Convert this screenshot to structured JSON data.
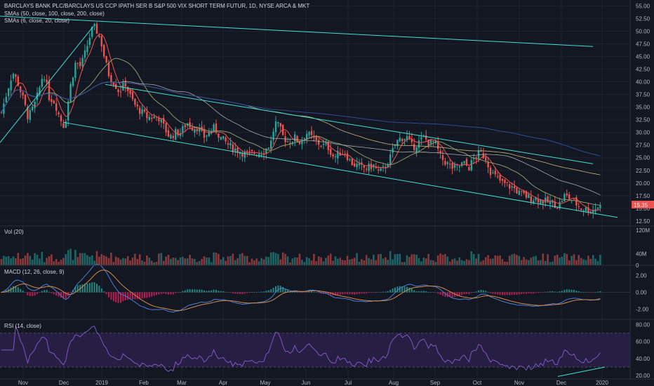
{
  "colors": {
    "background": "#131722",
    "grid": "#1e2230",
    "up": "#26a69a",
    "down": "#ef5350",
    "sma50": "#a9a9a9",
    "sma100": "#c9b47a",
    "sma200": "#2f4b9a",
    "sma6": "#ef5350",
    "sma20": "#8a9a6a",
    "trend": "#40e0d0",
    "macd": "#4a7fd4",
    "signal": "#d48a4a",
    "rsi": "#7e57c2",
    "rsi_band": "#2a1f47",
    "price_badge": "#ef5350"
  },
  "header": {
    "title": "BARCLAYS BANK PLC/BARCLAYS US CCP IPATH SER B S&P 500 VIX SHORT TERM FUTUR, 1D, NYSE ARCA & MKT",
    "sma_long": "SMAs (50, close, 100, close, 200, close)",
    "sma_short": "SMAs (6, close, 20, close)"
  },
  "panes": {
    "vol_label": "Vol (20)",
    "macd_label": "MACD (12, 26, close, 9)",
    "rsi_label": "RSI (14, close)"
  },
  "price_badge": "15.35",
  "chart_data": [
    {
      "type": "candlestick",
      "title": "BARCLAYS BANK PLC/BARCLAYS US CCP IPATH SER B S&P 500 VIX SHORT TERM FUTUR, 1D, NYSE ARCA & MKT",
      "x_ticks": [
        "Nov",
        "Dec",
        "2019",
        "Feb",
        "Mar",
        "Apr",
        "May",
        "Jun",
        "Jul",
        "Aug",
        "Sep",
        "Oct",
        "Nov",
        "Dec",
        "2020"
      ],
      "y_ticks": [
        "55.00",
        "52.50",
        "50.00",
        "47.50",
        "45.00",
        "42.50",
        "40.00",
        "37.50",
        "35.00",
        "32.50",
        "30.00",
        "27.50",
        "25.00",
        "22.50",
        "20.00",
        "17.50",
        "15.00",
        "12.50"
      ],
      "ylim": [
        11.5,
        55.5
      ],
      "last_price": 15.35,
      "close_path": [
        [
          0,
          33
        ],
        [
          10,
          38
        ],
        [
          18,
          42
        ],
        [
          25,
          40
        ],
        [
          32,
          37
        ],
        [
          40,
          33
        ],
        [
          48,
          35
        ],
        [
          55,
          38
        ],
        [
          62,
          42
        ],
        [
          70,
          37
        ],
        [
          78,
          36
        ],
        [
          85,
          33
        ],
        [
          92,
          31
        ],
        [
          100,
          39
        ],
        [
          108,
          44
        ],
        [
          115,
          43
        ],
        [
          122,
          46
        ],
        [
          128,
          49
        ],
        [
          133,
          51
        ],
        [
          138,
          50
        ],
        [
          144,
          48
        ],
        [
          150,
          44
        ],
        [
          156,
          41
        ],
        [
          162,
          40
        ],
        [
          170,
          38
        ],
        [
          178,
          40
        ],
        [
          186,
          37
        ],
        [
          194,
          35
        ],
        [
          202,
          34
        ],
        [
          210,
          33
        ],
        [
          218,
          33
        ],
        [
          226,
          33
        ],
        [
          234,
          31
        ],
        [
          242,
          29
        ],
        [
          250,
          30
        ],
        [
          258,
          30
        ],
        [
          266,
          32
        ],
        [
          274,
          31
        ],
        [
          282,
          31
        ],
        [
          290,
          29
        ],
        [
          298,
          30
        ],
        [
          306,
          31
        ],
        [
          314,
          29
        ],
        [
          322,
          28
        ],
        [
          330,
          27
        ],
        [
          338,
          26.5
        ],
        [
          346,
          26
        ],
        [
          354,
          25.5
        ],
        [
          362,
          26
        ],
        [
          370,
          26
        ],
        [
          378,
          26.5
        ],
        [
          386,
          28
        ],
        [
          392,
          32
        ],
        [
          398,
          31
        ],
        [
          404,
          29
        ],
        [
          412,
          28
        ],
        [
          420,
          29
        ],
        [
          428,
          28
        ],
        [
          436,
          30
        ],
        [
          444,
          29
        ],
        [
          452,
          28
        ],
        [
          460,
          27.5
        ],
        [
          468,
          27
        ],
        [
          476,
          25
        ],
        [
          484,
          26
        ],
        [
          492,
          26
        ],
        [
          500,
          24
        ],
        [
          508,
          23.5
        ],
        [
          516,
          23
        ],
        [
          524,
          23
        ],
        [
          532,
          23.5
        ],
        [
          540,
          22
        ],
        [
          548,
          23
        ],
        [
          556,
          25
        ],
        [
          564,
          28
        ],
        [
          572,
          29
        ],
        [
          580,
          29
        ],
        [
          588,
          27
        ],
        [
          596,
          28
        ],
        [
          604,
          29
        ],
        [
          612,
          28
        ],
        [
          620,
          28
        ],
        [
          628,
          25
        ],
        [
          636,
          24
        ],
        [
          644,
          23
        ],
        [
          652,
          23
        ],
        [
          660,
          24
        ],
        [
          668,
          23
        ],
        [
          676,
          25
        ],
        [
          684,
          26
        ],
        [
          692,
          25
        ],
        [
          700,
          22
        ],
        [
          708,
          21
        ],
        [
          716,
          20
        ],
        [
          724,
          19.5
        ],
        [
          732,
          19
        ],
        [
          740,
          18
        ],
        [
          748,
          17.5
        ],
        [
          756,
          17
        ],
        [
          764,
          17
        ],
        [
          772,
          16.5
        ],
        [
          780,
          16.2
        ],
        [
          788,
          16
        ],
        [
          796,
          15.5
        ],
        [
          804,
          17.5
        ],
        [
          812,
          17
        ],
        [
          820,
          16
        ],
        [
          828,
          15
        ],
        [
          836,
          14.8
        ],
        [
          844,
          14.6
        ],
        [
          852,
          15.35
        ]
      ]
    },
    {
      "type": "bar",
      "title": "Vol (20)",
      "y_ticks": [
        "120M",
        "40M",
        "0"
      ],
      "ylim": [
        0,
        120
      ]
    },
    {
      "type": "line",
      "title": "MACD (12, 26, close, 9)",
      "y_ticks": [
        "2.00",
        "0.00",
        "-2.00"
      ],
      "ylim": [
        -3.2,
        3.2
      ]
    },
    {
      "type": "line",
      "title": "RSI (14, close)",
      "y_ticks": [
        "80.00",
        "60.00",
        "40.00",
        "20.00"
      ],
      "ylim": [
        16,
        86
      ],
      "bands": [
        30,
        70
      ]
    }
  ]
}
